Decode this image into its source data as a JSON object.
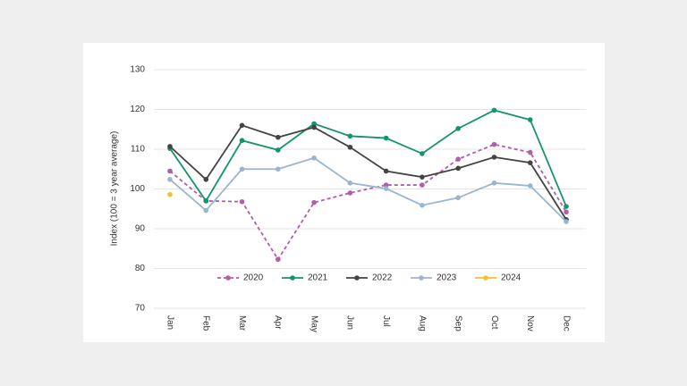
{
  "chart_data": {
    "type": "line",
    "y_label": "Index (100 = 3 year average)",
    "categories": [
      "Jan",
      "Feb",
      "Mar",
      "Apr",
      "May",
      "Jun",
      "Jul",
      "Aug",
      "Sep",
      "Oct",
      "Nov",
      "Dec"
    ],
    "series": [
      {
        "name": "2020",
        "color": "#b05fa8",
        "dashed": true,
        "values": [
          104.5,
          97,
          96.8,
          82.3,
          96.6,
          99,
          101,
          101,
          107.5,
          111.2,
          109.2,
          94.2
        ]
      },
      {
        "name": "2021",
        "color": "#14946a",
        "dashed": false,
        "values": [
          110.2,
          97,
          112.2,
          109.8,
          116.4,
          113.3,
          112.8,
          108.9,
          115.2,
          119.8,
          117.4,
          95.6
        ]
      },
      {
        "name": "2022",
        "color": "#444444",
        "dashed": false,
        "values": [
          110.7,
          102.4,
          116,
          113,
          115.5,
          110.5,
          104.5,
          103,
          105.2,
          108,
          106.6,
          92.3
        ]
      },
      {
        "name": "2023",
        "color": "#9ab5d0",
        "dashed": false,
        "values": [
          102.4,
          94.6,
          105,
          105,
          107.8,
          101.5,
          100.1,
          95.9,
          97.8,
          101.5,
          100.8,
          91.8
        ]
      },
      {
        "name": "2024",
        "color": "#f2c12e",
        "dashed": false,
        "values": [
          98.6,
          null,
          null,
          null,
          null,
          null,
          null,
          null,
          null,
          null,
          null,
          null
        ]
      }
    ],
    "ylim": [
      70,
      130
    ],
    "yticks": [
      70,
      80,
      90,
      100,
      110,
      120,
      130
    ],
    "grid": true,
    "legend": "bottom"
  }
}
